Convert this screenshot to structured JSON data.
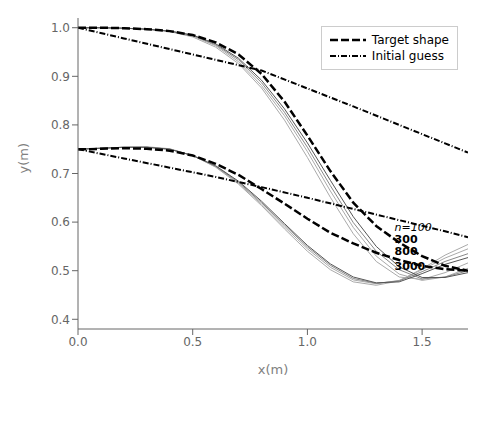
{
  "chart_data": {
    "type": "line",
    "xlabel": "x(m)",
    "ylabel": "y(m)",
    "xlim": [
      0,
      1.7
    ],
    "ylim": [
      0.38,
      1.02
    ],
    "xticks": [
      {
        "value": 0,
        "label": "0.0"
      },
      0.5,
      {
        "value": 1.0,
        "label": "1.0"
      },
      1.5
    ],
    "yticks": [
      0.4,
      0.5,
      0.6,
      0.7,
      0.8,
      0.9,
      {
        "value": 1.0,
        "label": "1.0"
      }
    ],
    "grid": false,
    "legend": "upper right",
    "series": [
      {
        "color": "#aaaaaa",
        "line_style": "solid",
        "x": [
          0.0,
          0.1,
          0.2,
          0.3,
          0.4,
          0.5,
          0.6,
          0.7,
          0.8,
          0.9,
          1.0,
          1.1,
          1.2,
          1.3,
          1.4,
          1.5,
          1.6,
          1.7
        ],
        "values": [
          1.0,
          1.0,
          0.999,
          0.997,
          0.992,
          0.981,
          0.96,
          0.926,
          0.876,
          0.81,
          0.733,
          0.651,
          0.576,
          0.519,
          0.487,
          0.482,
          0.496,
          0.516
        ]
      },
      {
        "color": "#aaaaaa",
        "line_style": "solid",
        "x": [
          0.0,
          0.1,
          0.2,
          0.3,
          0.4,
          0.5,
          0.6,
          0.7,
          0.8,
          0.9,
          1.0,
          1.1,
          1.2,
          1.3,
          1.4,
          1.5,
          1.6,
          1.7
        ],
        "values": [
          0.75,
          0.752,
          0.754,
          0.755,
          0.751,
          0.737,
          0.713,
          0.678,
          0.634,
          0.586,
          0.54,
          0.502,
          0.477,
          0.47,
          0.479,
          0.504,
          0.532,
          0.554
        ]
      },
      {
        "color": "#aaaaaa",
        "line_style": "solid",
        "x": [
          0.0,
          0.1,
          0.2,
          0.3,
          0.4,
          0.5,
          0.6,
          0.7,
          0.8,
          0.9,
          1.0,
          1.1,
          1.2,
          1.3,
          1.4,
          1.5,
          1.6,
          1.7
        ],
        "values": [
          1.0,
          1.0,
          0.999,
          0.997,
          0.993,
          0.983,
          0.963,
          0.93,
          0.881,
          0.819,
          0.745,
          0.664,
          0.589,
          0.53,
          0.493,
          0.48,
          0.487,
          0.505
        ]
      },
      {
        "color": "#aaaaaa",
        "line_style": "solid",
        "x": [
          0.0,
          0.1,
          0.2,
          0.3,
          0.4,
          0.5,
          0.6,
          0.7,
          0.8,
          0.9,
          1.0,
          1.1,
          1.2,
          1.3,
          1.4,
          1.5,
          1.6,
          1.7
        ],
        "values": [
          0.75,
          0.752,
          0.754,
          0.754,
          0.75,
          0.737,
          0.714,
          0.68,
          0.637,
          0.59,
          0.545,
          0.507,
          0.481,
          0.473,
          0.48,
          0.502,
          0.526,
          0.545
        ]
      },
      {
        "color": "#888888",
        "line_style": "solid",
        "x": [
          0.0,
          0.1,
          0.2,
          0.3,
          0.4,
          0.5,
          0.6,
          0.7,
          0.8,
          0.9,
          1.0,
          1.1,
          1.2,
          1.3,
          1.4,
          1.5,
          1.6,
          1.7
        ],
        "values": [
          1.0,
          1.0,
          0.999,
          0.997,
          0.993,
          0.984,
          0.965,
          0.934,
          0.887,
          0.826,
          0.754,
          0.675,
          0.599,
          0.54,
          0.502,
          0.483,
          0.487,
          0.5
        ]
      },
      {
        "color": "#888888",
        "line_style": "solid",
        "x": [
          0.0,
          0.1,
          0.2,
          0.3,
          0.4,
          0.5,
          0.6,
          0.7,
          0.8,
          0.9,
          1.0,
          1.1,
          1.2,
          1.3,
          1.4,
          1.5,
          1.6,
          1.7
        ],
        "values": [
          0.75,
          0.752,
          0.754,
          0.754,
          0.75,
          0.737,
          0.715,
          0.682,
          0.64,
          0.594,
          0.549,
          0.511,
          0.484,
          0.474,
          0.479,
          0.498,
          0.519,
          0.535
        ]
      },
      {
        "color": "#555555",
        "line_style": "solid",
        "x": [
          0.0,
          0.1,
          0.2,
          0.3,
          0.4,
          0.5,
          0.6,
          0.7,
          0.8,
          0.9,
          1.0,
          1.1,
          1.2,
          1.3,
          1.4,
          1.5,
          1.6,
          1.7
        ],
        "values": [
          1.0,
          1.0,
          0.999,
          0.997,
          0.993,
          0.985,
          0.967,
          0.937,
          0.892,
          0.833,
          0.763,
          0.686,
          0.611,
          0.55,
          0.508,
          0.486,
          0.486,
          0.496
        ]
      },
      {
        "color": "#555555",
        "line_style": "solid",
        "x": [
          0.0,
          0.1,
          0.2,
          0.3,
          0.4,
          0.5,
          0.6,
          0.7,
          0.8,
          0.9,
          1.0,
          1.1,
          1.2,
          1.3,
          1.4,
          1.5,
          1.6,
          1.7
        ],
        "values": [
          0.75,
          0.752,
          0.754,
          0.754,
          0.75,
          0.737,
          0.716,
          0.684,
          0.643,
          0.597,
          0.552,
          0.514,
          0.487,
          0.475,
          0.477,
          0.494,
          0.513,
          0.527
        ]
      },
      {
        "name": "Target shape",
        "color": "#000000",
        "line_style": "dashed",
        "x": [
          0.0,
          0.05,
          0.1,
          0.2,
          0.3,
          0.4,
          0.5,
          0.6,
          0.7,
          0.8,
          0.9,
          1.0,
          1.1,
          1.2,
          1.3,
          1.4,
          1.5,
          1.6,
          1.7
        ],
        "values": [
          1.0,
          1.0,
          1.0,
          0.999,
          0.997,
          0.993,
          0.985,
          0.97,
          0.945,
          0.905,
          0.848,
          0.778,
          0.705,
          0.64,
          0.592,
          0.558,
          0.53,
          0.51,
          0.5
        ]
      },
      {
        "name": "Target shape",
        "color": "#000000",
        "line_style": "dashed",
        "x": [
          0.0,
          0.05,
          0.1,
          0.2,
          0.3,
          0.4,
          0.5,
          0.6,
          0.7,
          0.8,
          0.9,
          1.0,
          1.1,
          1.2,
          1.3,
          1.4,
          1.5,
          1.6,
          1.7
        ],
        "values": [
          0.75,
          0.75,
          0.751,
          0.752,
          0.751,
          0.747,
          0.737,
          0.72,
          0.697,
          0.668,
          0.638,
          0.607,
          0.578,
          0.556,
          0.537,
          0.522,
          0.51,
          0.503,
          0.5
        ]
      },
      {
        "name": "Initial guess",
        "color": "#000000",
        "line_style": "dashdot",
        "x": [
          0.0,
          0.2,
          0.4,
          0.6,
          0.8,
          1.0,
          1.2,
          1.4,
          1.6,
          1.7
        ],
        "values": [
          1.0,
          0.978,
          0.956,
          0.934,
          0.912,
          0.875,
          0.838,
          0.8,
          0.762,
          0.743
        ]
      },
      {
        "name": "Initial guess",
        "color": "#000000",
        "line_style": "dashdot",
        "x": [
          0.0,
          0.2,
          0.4,
          0.6,
          0.8,
          1.0,
          1.2,
          1.4,
          1.6,
          1.7
        ],
        "values": [
          0.75,
          0.731,
          0.712,
          0.693,
          0.672,
          0.65,
          0.627,
          0.604,
          0.581,
          0.569
        ]
      }
    ],
    "annotations": [
      {
        "text": "n=100",
        "x": 1.38,
        "y": 0.59
      },
      {
        "text": "300",
        "x": 1.38,
        "y": 0.565
      },
      {
        "text": "800",
        "x": 1.38,
        "y": 0.54
      },
      {
        "text": "3000",
        "x": 1.38,
        "y": 0.51
      }
    ]
  }
}
